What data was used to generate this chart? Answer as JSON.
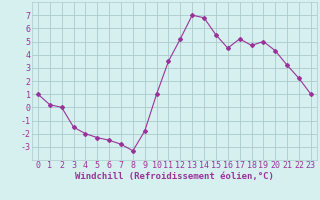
{
  "x": [
    0,
    1,
    2,
    3,
    4,
    5,
    6,
    7,
    8,
    9,
    10,
    11,
    12,
    13,
    14,
    15,
    16,
    17,
    18,
    19,
    20,
    21,
    22,
    23
  ],
  "y": [
    1,
    0.2,
    0,
    -1.5,
    -2,
    -2.3,
    -2.5,
    -2.8,
    -3.3,
    -1.8,
    1.0,
    3.5,
    5.2,
    7.0,
    6.8,
    5.5,
    4.5,
    5.2,
    4.7,
    5.0,
    4.3,
    3.2,
    2.2,
    1.0
  ],
  "line_color": "#993399",
  "marker": "D",
  "marker_size": 2,
  "bg_color": "#d6f0f0",
  "grid_color": "#aacccc",
  "xlabel": "Windchill (Refroidissement éolien,°C)",
  "xlabel_color": "#993399",
  "xlabel_fontsize": 6.5,
  "tick_color": "#993399",
  "tick_fontsize": 6,
  "ylim": [
    -4,
    8
  ],
  "xlim": [
    -0.5,
    23.5
  ],
  "yticks": [
    -3,
    -2,
    -1,
    0,
    1,
    2,
    3,
    4,
    5,
    6,
    7
  ],
  "xticks": [
    0,
    1,
    2,
    3,
    4,
    5,
    6,
    7,
    8,
    9,
    10,
    11,
    12,
    13,
    14,
    15,
    16,
    17,
    18,
    19,
    20,
    21,
    22,
    23
  ]
}
